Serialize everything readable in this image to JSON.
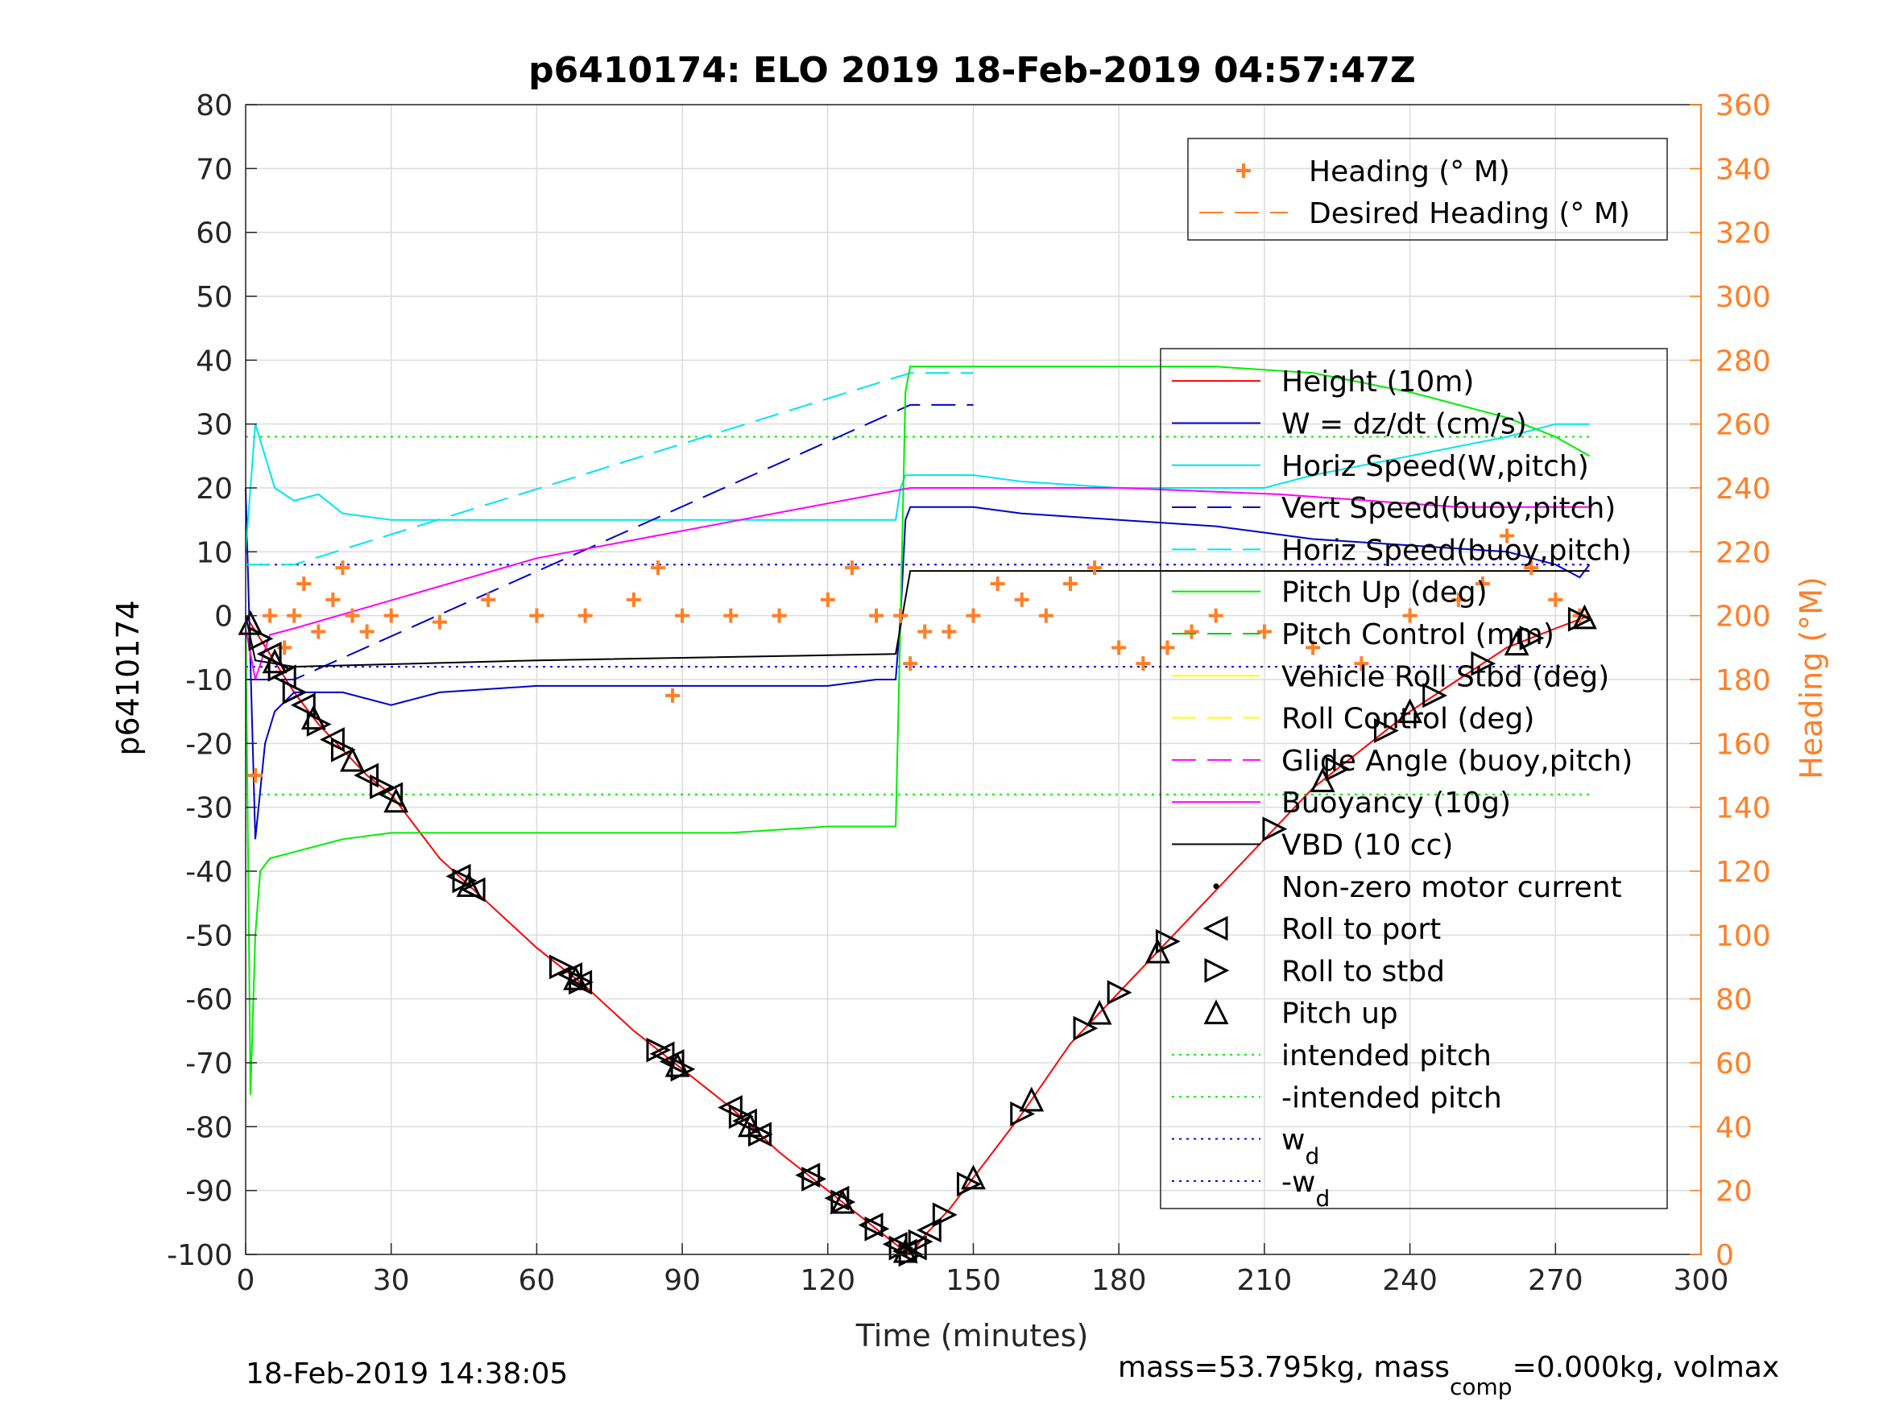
{
  "chart_data": {
    "type": "line",
    "title": "p6410174: ELO 2019 18-Feb-2019 04:57:47Z",
    "xlabel": "Time (minutes)",
    "ylabel": "p6410174",
    "ylabel_right": "Heading (°M)",
    "xlim": [
      0,
      300
    ],
    "ylim": [
      -100,
      80
    ],
    "ylim_right": [
      0,
      360
    ],
    "xticks": [
      0,
      30,
      60,
      90,
      120,
      150,
      180,
      210,
      240,
      270,
      300
    ],
    "yticks": [
      -100,
      -90,
      -80,
      -70,
      -60,
      -50,
      -40,
      -30,
      -20,
      -10,
      0,
      10,
      20,
      30,
      40,
      50,
      60,
      70,
      80
    ],
    "yticks_right": [
      0,
      20,
      40,
      60,
      80,
      100,
      120,
      140,
      160,
      180,
      200,
      220,
      240,
      260,
      280,
      300,
      320,
      340,
      360
    ],
    "grid": true,
    "footer_left": "18-Feb-2019 14:38:05",
    "footer_right": "mass=53.795kg, mass",
    "footer_right_sub": "comp",
    "footer_right_tail": "=0.000kg, volmax",
    "colors": {
      "axis_right": "#ff7f27",
      "height": "#ff0000",
      "w": "#0000cc",
      "horiz_speed": "#00e5ee",
      "vert_speed_buoy": "#0000cc",
      "horiz_speed_buoy": "#00e5ee",
      "pitch": "#00ee00",
      "pitch_control": "#00cc00",
      "roll": "#ffff00",
      "roll_control": "#ffff00",
      "glide_angle": "#ff00ff",
      "buoyancy": "#ff00ff",
      "vbd": "#000000",
      "heading": "#ff7f27",
      "intended_pitch": "#00ee00",
      "w_d": "#0000ff"
    },
    "legend_top": {
      "placement": "top-right",
      "entries": [
        {
          "label": "Heading (° M)",
          "style": "plus",
          "color": "#ff7f27"
        },
        {
          "label": "Desired Heading (° M)",
          "style": "dash",
          "color": "#ff7f27"
        }
      ]
    },
    "legend_main": {
      "placement": "right",
      "entries": [
        {
          "label": "Height (10m)",
          "style": "solid",
          "color": "#ff0000"
        },
        {
          "label": "W = dz/dt (cm/s)",
          "style": "solid",
          "color": "#0000cc"
        },
        {
          "label": "Horiz Speed(W,pitch)",
          "style": "solid",
          "color": "#00e5ee"
        },
        {
          "label": "Vert Speed(buoy,pitch)",
          "style": "dash",
          "color": "#0000cc"
        },
        {
          "label": "Horiz Speed(buoy,pitch)",
          "style": "dash",
          "color": "#00e5ee"
        },
        {
          "label": "Pitch Up (deg)",
          "style": "solid",
          "color": "#00ee00"
        },
        {
          "label": "Pitch Control (mm)",
          "style": "dash",
          "color": "#00cc00"
        },
        {
          "label": "Vehicle Roll Stbd (deg)",
          "style": "solid",
          "color": "#ffff00"
        },
        {
          "label": "Roll Control (deg)",
          "style": "dash",
          "color": "#ffff00"
        },
        {
          "label": "Glide Angle (buoy,pitch)",
          "style": "dash",
          "color": "#ff00ff"
        },
        {
          "label": "Buoyancy (10g)",
          "style": "solid",
          "color": "#ff00ff"
        },
        {
          "label": "VBD (10 cc)",
          "style": "solid",
          "color": "#000000"
        },
        {
          "label": "Non-zero motor current",
          "style": "dot",
          "color": "#000000"
        },
        {
          "label": "Roll to port",
          "style": "tri-left",
          "color": "#000000"
        },
        {
          "label": "Roll to stbd",
          "style": "tri-right",
          "color": "#000000"
        },
        {
          "label": "Pitch up",
          "style": "tri-up",
          "color": "#000000"
        },
        {
          "label": "intended pitch",
          "style": "dotted",
          "color": "#00ee00"
        },
        {
          "label": "-intended pitch",
          "style": "dotted",
          "color": "#00ee00"
        },
        {
          "label": "w",
          "sub": "d",
          "style": "dotted",
          "color": "#0000ff"
        },
        {
          "label": "-w",
          "sub": "d",
          "style": "dotted",
          "color": "#0000ff"
        }
      ]
    },
    "series": [
      {
        "name": "Height (10m)",
        "axis": "left",
        "x": [
          0,
          5,
          10,
          15,
          20,
          25,
          30,
          40,
          50,
          60,
          70,
          80,
          90,
          100,
          110,
          120,
          130,
          135,
          137,
          140,
          145,
          150,
          160,
          170,
          180,
          190,
          200,
          210,
          220,
          230,
          240,
          250,
          260,
          270,
          277
        ],
        "y": [
          0,
          -6,
          -12,
          -17,
          -21,
          -25,
          -28,
          -38,
          -45,
          -52,
          -58,
          -65,
          -71,
          -77,
          -84,
          -90,
          -96,
          -99,
          -100,
          -97,
          -93,
          -88,
          -78,
          -67,
          -59,
          -51,
          -43,
          -35,
          -27,
          -21,
          -15,
          -10,
          -5,
          -2,
          0
        ]
      },
      {
        "name": "W = dz/dt (cm/s)",
        "axis": "left",
        "x": [
          0,
          2,
          4,
          6,
          10,
          20,
          30,
          40,
          60,
          80,
          100,
          120,
          130,
          134,
          135,
          136,
          137,
          140,
          150,
          160,
          180,
          200,
          210,
          220,
          240,
          260,
          270,
          275,
          277
        ],
        "y": [
          20,
          -35,
          -20,
          -15,
          -12,
          -12,
          -14,
          -12,
          -11,
          -11,
          -11,
          -11,
          -10,
          -10,
          0,
          15,
          17,
          17,
          17,
          16,
          15,
          14,
          13,
          12,
          11,
          10,
          8,
          6,
          8
        ]
      },
      {
        "name": "Horiz Speed(W,pitch)",
        "axis": "left",
        "x": [
          0,
          2,
          4,
          6,
          10,
          15,
          20,
          30,
          40,
          60,
          80,
          100,
          120,
          130,
          134,
          135,
          136,
          137,
          140,
          150,
          160,
          180,
          200,
          210,
          220,
          240,
          260,
          270,
          275,
          277
        ],
        "y": [
          10,
          30,
          25,
          20,
          18,
          19,
          16,
          15,
          15,
          15,
          15,
          15,
          15,
          15,
          15,
          20,
          22,
          22,
          22,
          22,
          21,
          20,
          20,
          20,
          22,
          25,
          28,
          30,
          30,
          30
        ]
      },
      {
        "name": "Vert Speed(buoy,pitch)",
        "axis": "left",
        "x": [
          0,
          10,
          137,
          150
        ],
        "y": [
          -10,
          -10,
          33,
          33
        ]
      },
      {
        "name": "Horiz Speed(buoy,pitch)",
        "axis": "left",
        "x": [
          0,
          10,
          137,
          150
        ],
        "y": [
          8,
          8,
          38,
          38
        ]
      },
      {
        "name": "Pitch Up (deg)",
        "axis": "left",
        "x": [
          0,
          1,
          2,
          3,
          5,
          10,
          20,
          30,
          40,
          60,
          80,
          100,
          120,
          134,
          135,
          136,
          137,
          140,
          150,
          160,
          180,
          200,
          220,
          240,
          260,
          270,
          277
        ],
        "y": [
          0,
          -75,
          -50,
          -40,
          -38,
          -37,
          -35,
          -34,
          -34,
          -34,
          -34,
          -34,
          -33,
          -33,
          0,
          35,
          39,
          39,
          39,
          39,
          39,
          39,
          38,
          35,
          31,
          28,
          25
        ]
      },
      {
        "name": "Buoyancy (10g)",
        "axis": "left",
        "x": [
          0,
          2,
          5,
          10,
          60,
          137,
          150,
          180,
          213,
          250,
          277
        ],
        "y": [
          -2,
          -10,
          -3,
          -2,
          9,
          20,
          20,
          20,
          19,
          17,
          17
        ]
      },
      {
        "name": "VBD (10 cc)",
        "axis": "left",
        "x": [
          0,
          2,
          10,
          60,
          134,
          137,
          140,
          180,
          213,
          250,
          277
        ],
        "y": [
          0,
          -7,
          -8,
          -7,
          -6,
          7,
          7,
          7,
          7,
          7,
          7
        ]
      },
      {
        "name": "Heading (° M)",
        "axis": "right",
        "x": [
          2,
          5,
          8,
          10,
          12,
          15,
          18,
          20,
          22,
          25,
          30,
          40,
          50,
          60,
          70,
          80,
          85,
          88,
          90,
          100,
          110,
          120,
          125,
          130,
          135,
          137,
          140,
          145,
          150,
          155,
          160,
          165,
          170,
          175,
          180,
          185,
          190,
          195,
          200,
          210,
          220,
          230,
          240,
          250,
          255,
          260,
          265,
          270,
          275
        ],
        "y": [
          150,
          200,
          190,
          200,
          210,
          195,
          205,
          215,
          200,
          195,
          200,
          198,
          205,
          200,
          200,
          205,
          215,
          175,
          200,
          200,
          200,
          205,
          215,
          200,
          200,
          185,
          195,
          195,
          200,
          210,
          205,
          200,
          210,
          215,
          190,
          185,
          190,
          195,
          200,
          195,
          190,
          185,
          200,
          205,
          210,
          225,
          215,
          205,
          200
        ]
      }
    ],
    "refs": [
      {
        "name": "intended pitch",
        "y": 28
      },
      {
        "name": "-intended pitch",
        "y": -28
      },
      {
        "name": "w_d",
        "y": 8
      },
      {
        "name": "-w_d",
        "y": -8
      }
    ],
    "markers": {
      "tri_left_x": [
        5,
        8,
        12,
        18,
        25,
        30,
        44,
        47,
        67,
        69,
        86,
        88,
        100,
        103,
        106,
        116,
        122,
        129,
        134,
        136,
        138,
        141
      ],
      "tri_right_x": [
        3,
        7,
        10,
        15,
        20,
        28,
        45,
        65,
        69,
        85,
        90,
        102,
        106,
        117,
        123,
        130,
        135,
        137,
        139,
        144,
        149,
        160,
        173,
        180,
        190,
        212,
        225,
        235,
        245,
        255,
        265,
        275
      ],
      "tri_up_x": [
        1,
        6,
        14,
        22,
        31,
        46,
        68,
        89,
        104,
        123,
        136,
        150,
        162,
        176,
        188,
        222,
        240,
        262,
        276
      ]
    }
  }
}
